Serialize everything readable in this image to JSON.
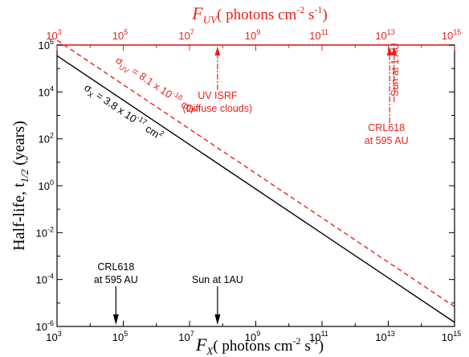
{
  "chart_data": {
    "type": "line",
    "x_scale": "log",
    "y_scale": "log",
    "xlim": [
      1000,
      1000000000000000.0
    ],
    "ylim": [
      1e-06,
      1000000.0
    ],
    "x_ticks": [
      {
        "value": 1000.0,
        "base": "10",
        "exp": "3"
      },
      {
        "value": 100000.0,
        "base": "10",
        "exp": "5"
      },
      {
        "value": 10000000.0,
        "base": "10",
        "exp": "7"
      },
      {
        "value": 1000000000.0,
        "base": "10",
        "exp": "9"
      },
      {
        "value": 100000000000.0,
        "base": "10",
        "exp": "11"
      },
      {
        "value": 10000000000000.0,
        "base": "10",
        "exp": "13"
      },
      {
        "value": 1000000000000000.0,
        "base": "10",
        "exp": "15"
      }
    ],
    "y_ticks": [
      {
        "value": 1e-06,
        "base": "10",
        "exp": "-6"
      },
      {
        "value": 0.0001,
        "base": "10",
        "exp": "-4"
      },
      {
        "value": 0.01,
        "base": "10",
        "exp": "-2"
      },
      {
        "value": 1.0,
        "base": "10",
        "exp": "0"
      },
      {
        "value": 100.0,
        "base": "10",
        "exp": "2"
      },
      {
        "value": 10000.0,
        "base": "10",
        "exp": "4"
      },
      {
        "value": 1000000.0,
        "base": "10",
        "exp": "6"
      }
    ],
    "xlabel": {
      "symbol": "F",
      "sub": "X",
      "text": "( photons cm",
      "exp1": "-2",
      "mid": " s",
      "exp2": "-1",
      "close": ")"
    },
    "x2label": {
      "symbol": "F",
      "sub": "UV",
      "text": "( photons cm",
      "exp1": "-2",
      "mid": " s",
      "exp2": "-1",
      "close": ")"
    },
    "ylabel": {
      "text": "Half-life, t",
      "sub": "1/2",
      "unit": " (years)"
    },
    "series": [
      {
        "label": {
          "sym": "σ",
          "sub": "X",
          "text": " = 3.8 x 10",
          "exp": "-17",
          "unit": " cm",
          "unit_exp": "2"
        },
        "color": "#000000",
        "style": "solid",
        "x": [
          1000,
          1000000000000000.0
        ],
        "y": [
          350000.0,
          1.5e-06
        ]
      },
      {
        "label": {
          "sym": "σ",
          "sub": "UV",
          "text": " = 8.1 x 10",
          "exp": "-18",
          "unit": " cm",
          "unit_exp": "2"
        },
        "color": "#e8221b",
        "style": "dashed",
        "x": [
          1000,
          1000000000000000.0
        ],
        "y": [
          1600000.0,
          7e-06
        ]
      }
    ],
    "annotations": [
      {
        "lines": [
          "CRL618",
          "at 595 AU"
        ],
        "axis": "bottom",
        "x": 60000.0,
        "color": "#000000"
      },
      {
        "lines": [
          "Sun at 1AU"
        ],
        "axis": "bottom",
        "x": 70000000.0,
        "color": "#000000"
      },
      {
        "lines": [
          "UV ISRF",
          "(Diffuse clouds)"
        ],
        "axis": "top",
        "x": 70000000.0,
        "color": "#e8221b"
      },
      {
        "lines": [
          "CRL618",
          "at 595 AU"
        ],
        "axis": "top",
        "x": 11000000000000.0,
        "color": "#e8221b"
      },
      {
        "lines": [
          "Sun at 1 AU"
        ],
        "axis": "top",
        "x": 15000000000000.0,
        "color": "#e8221b"
      }
    ],
    "colors": {
      "axis": "#000000",
      "top_axis": "#e8221b"
    }
  }
}
